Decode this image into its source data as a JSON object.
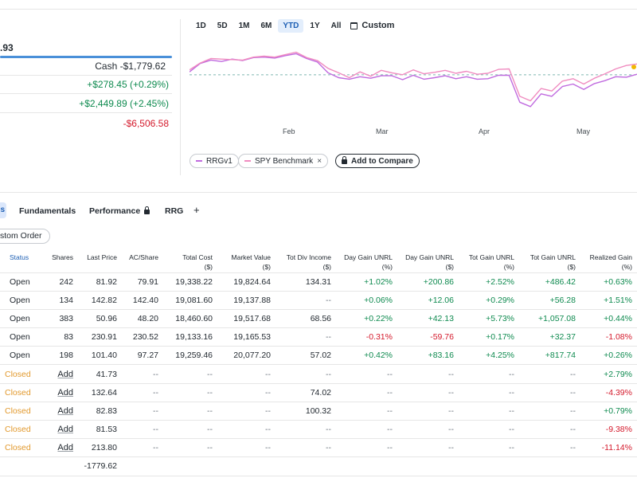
{
  "summary": {
    "value_partial": ".93",
    "rows": [
      {
        "text": "Cash -$1,779.62",
        "tone": "plain"
      },
      {
        "text": "+$278.45 (+0.29%)",
        "tone": "pos"
      },
      {
        "text": "+$2,449.89 (+2.45%)",
        "tone": "pos"
      },
      {
        "text": "-$6,506.58",
        "tone": "neg"
      }
    ]
  },
  "timeframes": [
    "1D",
    "5D",
    "1M",
    "6M",
    "YTD",
    "1Y",
    "All"
  ],
  "timeframe_active": "YTD",
  "custom_label": "Custom",
  "chart_data": {
    "type": "line",
    "x_labels": [
      "Feb",
      "Mar",
      "Apr",
      "May"
    ],
    "baseline_style": "dashed",
    "series": [
      {
        "name": "RRGv1",
        "color": "#c06adf",
        "values": [
          0.6,
          2.3,
          3.0,
          2.7,
          3.2,
          2.9,
          3.5,
          3.6,
          3.4,
          3.9,
          4.3,
          3.3,
          2.6,
          0.4,
          -0.6,
          -0.9,
          -0.4,
          -0.7,
          -0.2,
          -0.2,
          -1.0,
          -0.1,
          -0.9,
          -0.6,
          -0.2,
          -0.8,
          -0.4,
          -0.9,
          -0.8,
          -0.1,
          -0.1,
          -5.6,
          -6.5,
          -3.9,
          -4.4,
          -2.4,
          -1.9,
          -3.0,
          -1.8,
          -1.2,
          -0.4,
          -0.5,
          0.1
        ]
      },
      {
        "name": "SPY Benchmark",
        "color": "#f08cc0",
        "values": [
          1.0,
          2.4,
          3.3,
          3.2,
          3.1,
          3.0,
          3.6,
          3.8,
          3.6,
          4.1,
          4.6,
          3.5,
          2.9,
          1.3,
          0.4,
          -0.6,
          0.6,
          -0.3,
          0.9,
          0.4,
          0.0,
          1.0,
          0.2,
          0.5,
          0.9,
          0.3,
          0.7,
          0.1,
          0.3,
          1.1,
          1.2,
          -4.4,
          -5.3,
          -2.8,
          -3.3,
          -1.3,
          -0.8,
          -1.9,
          -0.7,
          0.2,
          1.2,
          1.9,
          2.2
        ]
      }
    ]
  },
  "legend": {
    "rrg": "RRGv1",
    "spy": "SPY Benchmark",
    "remove": "×",
    "compare": "Add to Compare"
  },
  "tabs": [
    "Fundamentals",
    "Performance",
    "RRG"
  ],
  "tab_plus": "+",
  "tab_partial": "s",
  "custom_order": "stom Order",
  "table": {
    "headers": [
      [
        "Status",
        ""
      ],
      [
        "Shares",
        ""
      ],
      [
        "Last Price",
        ""
      ],
      [
        "AC/Share",
        ""
      ],
      [
        "Total Cost",
        "($)"
      ],
      [
        "Market Value",
        "($)"
      ],
      [
        "Tot Div Income",
        "($)"
      ],
      [
        "Day Gain UNRL",
        "(%)"
      ],
      [
        "Day Gain UNRL",
        "($)"
      ],
      [
        "Tot Gain UNRL",
        "(%)"
      ],
      [
        "Tot Gain UNRL",
        "($)"
      ],
      [
        "Realized Gain",
        "(%)"
      ]
    ],
    "rows": [
      [
        "Open",
        "242",
        "81.92",
        "79.91",
        "19,338.22",
        "19,824.64",
        "134.31",
        "+1.02%",
        "+200.86",
        "+2.52%",
        "+486.42",
        "+0.63%"
      ],
      [
        "Open",
        "134",
        "142.82",
        "142.40",
        "19,081.60",
        "19,137.88",
        "--",
        "+0.06%",
        "+12.06",
        "+0.29%",
        "+56.28",
        "+1.51%"
      ],
      [
        "Open",
        "383",
        "50.96",
        "48.20",
        "18,460.60",
        "19,517.68",
        "68.56",
        "+0.22%",
        "+42.13",
        "+5.73%",
        "+1,057.08",
        "+0.44%"
      ],
      [
        "Open",
        "83",
        "230.91",
        "230.52",
        "19,133.16",
        "19,165.53",
        "--",
        "-0.31%",
        "-59.76",
        "+0.17%",
        "+32.37",
        "-1.08%"
      ],
      [
        "Open",
        "198",
        "101.40",
        "97.27",
        "19,259.46",
        "20,077.20",
        "57.02",
        "+0.42%",
        "+83.16",
        "+4.25%",
        "+817.74",
        "+0.26%"
      ],
      [
        "Closed",
        "Add",
        "41.73",
        "--",
        "--",
        "--",
        "--",
        "--",
        "--",
        "--",
        "--",
        "+2.79%"
      ],
      [
        "Closed",
        "Add",
        "132.64",
        "--",
        "--",
        "--",
        "74.02",
        "--",
        "--",
        "--",
        "--",
        "-4.39%"
      ],
      [
        "Closed",
        "Add",
        "82.83",
        "--",
        "--",
        "--",
        "100.32",
        "--",
        "--",
        "--",
        "--",
        "+0.79%"
      ],
      [
        "Closed",
        "Add",
        "81.53",
        "--",
        "--",
        "--",
        "--",
        "--",
        "--",
        "--",
        "--",
        "-9.38%"
      ],
      [
        "Closed",
        "Add",
        "213.80",
        "--",
        "--",
        "--",
        "--",
        "--",
        "--",
        "--",
        "--",
        "-11.14%"
      ],
      [
        "",
        "",
        "-1779.62",
        "",
        "",
        "",
        "",
        "",
        "",
        "",
        "",
        ""
      ]
    ]
  },
  "colors": {
    "positive": "#0e8a4f",
    "negative": "#d41a2c",
    "closed": "#e29a2f",
    "accent": "#1d5fb4"
  }
}
